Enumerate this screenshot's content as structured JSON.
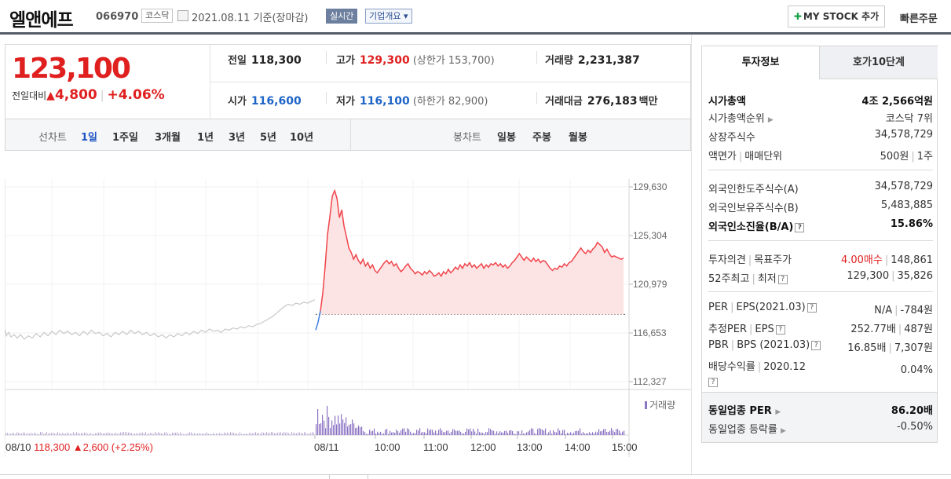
{
  "header": {
    "stock_name": "엘앤에프",
    "stock_code": "066970",
    "market": "코스닥",
    "date": "2021.08.11 기준(장마감)",
    "realtime_label": "실시간",
    "company_label": "기업개요 ▾",
    "mystock_label": "MY STOCK 추가",
    "quick_order_label": "빠른주문"
  },
  "price": {
    "current": "123,100",
    "change_label": "전일대비",
    "change_value": "4,800",
    "change_pct": "+4.06%",
    "prev_close_label": "전일",
    "prev_close": "118,300",
    "high_label": "고가",
    "high": "129,300",
    "upper_limit": "(상한가 153,700)",
    "volume_label": "거래량",
    "volume": "2,231,387",
    "open_label": "시가",
    "open": "116,600",
    "low_label": "저가",
    "low": "116,100",
    "lower_limit": "(하한가 82,900)",
    "amount_label": "거래대금",
    "amount": "276,183",
    "amount_unit": "백만"
  },
  "periods": {
    "line_label": "선차트",
    "line_items": [
      "1일",
      "1주일",
      "3개월",
      "1년",
      "3년",
      "5년",
      "10년"
    ],
    "candle_label": "봉차트",
    "candle_items": [
      "일봉",
      "주봉",
      "월봉"
    ]
  },
  "chart_data": {
    "type": "line",
    "title": "",
    "y_ticks": [
      "129,630",
      "125,304",
      "120,979",
      "116,653",
      "112,327"
    ],
    "ylim": [
      112327,
      129630
    ],
    "prev_close": 118300,
    "x_ticks": [
      "08/11",
      "10:00",
      "11:00",
      "12:00",
      "13:00",
      "14:00",
      "15:00"
    ],
    "prev_day_label": "08/10",
    "prev_day_price": "118,300",
    "prev_day_change": "2,600",
    "prev_day_pct": "(+2.25%)",
    "volume_legend": "거래량",
    "prev_day_series": [
      [
        0,
        117000
      ],
      [
        2,
        116400
      ],
      [
        5,
        116700
      ],
      [
        8,
        116300
      ],
      [
        12,
        116500
      ],
      [
        16,
        116200
      ],
      [
        20,
        116500
      ],
      [
        25,
        116100
      ],
      [
        30,
        116400
      ],
      [
        35,
        116200
      ],
      [
        40,
        116600
      ],
      [
        45,
        116300
      ],
      [
        50,
        116700
      ],
      [
        55,
        116400
      ],
      [
        60,
        116800
      ],
      [
        65,
        116500
      ],
      [
        70,
        116900
      ],
      [
        75,
        116600
      ],
      [
        80,
        116800
      ],
      [
        85,
        116500
      ],
      [
        90,
        116700
      ],
      [
        95,
        116400
      ],
      [
        100,
        116800
      ],
      [
        105,
        116500
      ],
      [
        110,
        116900
      ],
      [
        115,
        116600
      ],
      [
        120,
        116700
      ],
      [
        125,
        116400
      ],
      [
        130,
        116600
      ],
      [
        135,
        116300
      ],
      [
        140,
        116700
      ],
      [
        145,
        116500
      ],
      [
        150,
        116800
      ],
      [
        155,
        116500
      ],
      [
        160,
        116900
      ],
      [
        165,
        116600
      ],
      [
        170,
        116800
      ],
      [
        175,
        116500
      ],
      [
        180,
        116700
      ],
      [
        185,
        116400
      ],
      [
        190,
        116600
      ],
      [
        195,
        116300
      ],
      [
        200,
        116500
      ],
      [
        205,
        116200
      ],
      [
        210,
        116500
      ],
      [
        215,
        116300
      ],
      [
        220,
        116600
      ],
      [
        225,
        116400
      ],
      [
        230,
        116700
      ],
      [
        235,
        116500
      ],
      [
        240,
        116800
      ],
      [
        245,
        116600
      ],
      [
        250,
        116900
      ],
      [
        255,
        116700
      ],
      [
        260,
        117000
      ],
      [
        265,
        116800
      ],
      [
        270,
        116900
      ],
      [
        275,
        116700
      ],
      [
        280,
        117000
      ],
      [
        285,
        116900
      ],
      [
        290,
        117100
      ],
      [
        295,
        117000
      ],
      [
        300,
        117200
      ],
      [
        305,
        117100
      ],
      [
        310,
        117300
      ],
      [
        315,
        117200
      ],
      [
        320,
        117400
      ],
      [
        325,
        117500
      ],
      [
        330,
        117700
      ],
      [
        335,
        117900
      ],
      [
        340,
        118100
      ],
      [
        345,
        118400
      ],
      [
        350,
        118700
      ],
      [
        355,
        119000
      ],
      [
        360,
        119200
      ],
      [
        365,
        119100
      ],
      [
        370,
        119300
      ],
      [
        375,
        119200
      ],
      [
        380,
        119400
      ],
      [
        385,
        119300
      ],
      [
        390,
        119500
      ],
      [
        394,
        119600
      ]
    ],
    "today_series": [
      [
        0,
        116900
      ],
      [
        3,
        117600
      ],
      [
        6,
        118600
      ],
      [
        9,
        120200
      ],
      [
        12,
        122600
      ],
      [
        15,
        125400
      ],
      [
        18,
        127000
      ],
      [
        21,
        128800
      ],
      [
        24,
        129300
      ],
      [
        27,
        128600
      ],
      [
        30,
        126900
      ],
      [
        33,
        127600
      ],
      [
        36,
        126100
      ],
      [
        39,
        125200
      ],
      [
        42,
        124200
      ],
      [
        45,
        123800
      ],
      [
        48,
        123200
      ],
      [
        51,
        123600
      ],
      [
        54,
        123100
      ],
      [
        57,
        122800
      ],
      [
        60,
        123200
      ],
      [
        63,
        122600
      ],
      [
        66,
        122900
      ],
      [
        69,
        122400
      ],
      [
        72,
        122700
      ],
      [
        75,
        122200
      ],
      [
        78,
        122000
      ],
      [
        81,
        122300
      ],
      [
        84,
        122600
      ],
      [
        87,
        122900
      ],
      [
        90,
        123100
      ],
      [
        93,
        122800
      ],
      [
        96,
        123000
      ],
      [
        99,
        122600
      ],
      [
        102,
        122800
      ],
      [
        105,
        122400
      ],
      [
        108,
        122100
      ],
      [
        111,
        122300
      ],
      [
        114,
        122600
      ],
      [
        117,
        122800
      ],
      [
        120,
        122400
      ],
      [
        123,
        122200
      ],
      [
        126,
        121900
      ],
      [
        129,
        122100
      ],
      [
        132,
        122000
      ],
      [
        135,
        121800
      ],
      [
        138,
        122100
      ],
      [
        141,
        121900
      ],
      [
        144,
        122200
      ],
      [
        147,
        122000
      ],
      [
        150,
        121700
      ],
      [
        153,
        121800
      ],
      [
        156,
        122000
      ],
      [
        159,
        121700
      ],
      [
        162,
        122100
      ],
      [
        165,
        121900
      ],
      [
        168,
        122300
      ],
      [
        171,
        122000
      ],
      [
        174,
        122200
      ],
      [
        177,
        122500
      ],
      [
        180,
        122300
      ],
      [
        183,
        122700
      ],
      [
        186,
        122400
      ],
      [
        189,
        122800
      ],
      [
        192,
        122600
      ],
      [
        195,
        122900
      ],
      [
        198,
        122500
      ],
      [
        201,
        122700
      ],
      [
        204,
        122400
      ],
      [
        207,
        122600
      ],
      [
        210,
        122800
      ],
      [
        213,
        122400
      ],
      [
        216,
        122700
      ],
      [
        219,
        122500
      ],
      [
        222,
        122800
      ],
      [
        225,
        122700
      ],
      [
        228,
        122900
      ],
      [
        231,
        122600
      ],
      [
        234,
        122800
      ],
      [
        237,
        122500
      ],
      [
        240,
        122700
      ],
      [
        243,
        122400
      ],
      [
        246,
        122600
      ],
      [
        249,
        122900
      ],
      [
        252,
        123100
      ],
      [
        255,
        123400
      ],
      [
        258,
        123700
      ],
      [
        261,
        123400
      ],
      [
        264,
        123100
      ],
      [
        267,
        123400
      ],
      [
        270,
        123200
      ],
      [
        273,
        123000
      ],
      [
        276,
        123300
      ],
      [
        279,
        123000
      ],
      [
        282,
        123200
      ],
      [
        285,
        122900
      ],
      [
        288,
        123100
      ],
      [
        291,
        123000
      ],
      [
        294,
        122700
      ],
      [
        297,
        122400
      ],
      [
        300,
        122200
      ],
      [
        303,
        122400
      ],
      [
        306,
        122300
      ],
      [
        309,
        122600
      ],
      [
        312,
        122500
      ],
      [
        315,
        122800
      ],
      [
        318,
        122600
      ],
      [
        321,
        122900
      ],
      [
        324,
        123000
      ],
      [
        327,
        123300
      ],
      [
        330,
        123600
      ],
      [
        333,
        123900
      ],
      [
        336,
        124200
      ],
      [
        339,
        123900
      ],
      [
        342,
        123700
      ],
      [
        345,
        124000
      ],
      [
        348,
        123800
      ],
      [
        351,
        124100
      ],
      [
        354,
        124300
      ],
      [
        357,
        124700
      ],
      [
        360,
        124500
      ],
      [
        363,
        124300
      ],
      [
        366,
        123800
      ],
      [
        369,
        124100
      ],
      [
        372,
        123700
      ],
      [
        375,
        123400
      ],
      [
        378,
        123500
      ],
      [
        381,
        123400
      ],
      [
        384,
        123300
      ],
      [
        387,
        123200
      ],
      [
        390,
        123300
      ]
    ]
  },
  "invest_panel": {
    "tab_active": "투자정보",
    "tab_other": "호가10단계",
    "market_cap_label": "시가총액",
    "market_cap": "4조 2,566억원",
    "market_cap_rank_label": "시가총액순위",
    "market_cap_rank": "코스닥 7위",
    "shares_label": "상장주식수",
    "shares": "34,578,729",
    "par_label": "액면가",
    "unit_label": "매매단위",
    "par": "500원",
    "unit": "1주",
    "foreign_limit_label": "외국인한도주식수(A)",
    "foreign_limit": "34,578,729",
    "foreign_hold_label": "외국인보유주식수(B)",
    "foreign_hold": "5,483,885",
    "foreign_ratio_label": "외국인소진율(B/A)",
    "foreign_ratio": "15.86%",
    "opinion_label": "투자의견",
    "target_label": "목표주가",
    "opinion": "4.00매수",
    "target": "148,861",
    "week52_label": "52주최고",
    "low52_label": "최저",
    "week52_high": "129,300",
    "week52_low": "35,826",
    "per_label": "PER",
    "eps_label": "EPS(2021.03)",
    "per": "N/A",
    "eps": "-784원",
    "est_per_label": "추정PER",
    "est_eps_label": "EPS",
    "est_per": "252.77배",
    "est_eps": "487원",
    "pbr_label": "PBR",
    "bps_label": "BPS (2021.03)",
    "pbr": "16.85배",
    "bps": "7,307원",
    "div_label": "배당수익률",
    "div_date": "2020.12",
    "div": "0.04%",
    "sector_per_label": "동일업종 PER",
    "sector_per": "86.20배",
    "sector_change_label": "동일업종 등락률",
    "sector_change": "-0.50%"
  }
}
